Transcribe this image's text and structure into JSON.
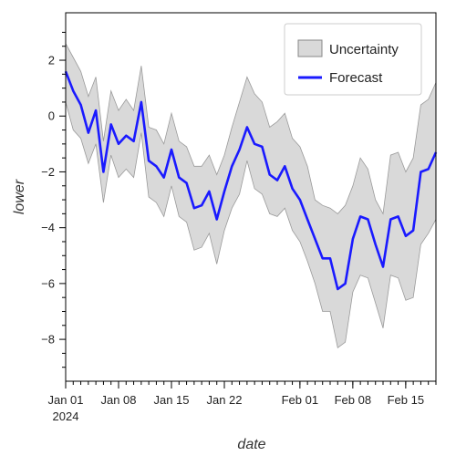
{
  "chart_data": {
    "type": "line",
    "title": "",
    "xlabel": "date",
    "ylabel": "lower",
    "x_start": "2024-01-01",
    "x_end": "2024-02-19",
    "xlim": [
      "2024-01-01",
      "2024-02-19"
    ],
    "ylim": [
      -9.5,
      3.7
    ],
    "y_ticks": [
      2,
      0,
      -2,
      -4,
      -6,
      -8
    ],
    "x_ticks": [
      {
        "date": "2024-01-01",
        "label": "Jan 01",
        "sublabel": "2024"
      },
      {
        "date": "2024-01-08",
        "label": "Jan 08",
        "sublabel": ""
      },
      {
        "date": "2024-01-15",
        "label": "Jan 15",
        "sublabel": ""
      },
      {
        "date": "2024-01-22",
        "label": "Jan 22",
        "sublabel": ""
      },
      {
        "date": "2024-02-01",
        "label": "Feb 01",
        "sublabel": ""
      },
      {
        "date": "2024-02-08",
        "label": "Feb 08",
        "sublabel": ""
      },
      {
        "date": "2024-02-15",
        "label": "Feb 15",
        "sublabel": ""
      }
    ],
    "grid": false,
    "legend_position": "top-right",
    "series": [
      {
        "name": "Forecast",
        "type": "line",
        "color": "#1a1aff",
        "x": [
          "2024-01-01",
          "2024-01-02",
          "2024-01-03",
          "2024-01-04",
          "2024-01-05",
          "2024-01-06",
          "2024-01-07",
          "2024-01-08",
          "2024-01-09",
          "2024-01-10",
          "2024-01-11",
          "2024-01-12",
          "2024-01-13",
          "2024-01-14",
          "2024-01-15",
          "2024-01-16",
          "2024-01-17",
          "2024-01-18",
          "2024-01-19",
          "2024-01-20",
          "2024-01-21",
          "2024-01-22",
          "2024-01-23",
          "2024-01-24",
          "2024-01-25",
          "2024-01-26",
          "2024-01-27",
          "2024-01-28",
          "2024-01-29",
          "2024-01-30",
          "2024-01-31",
          "2024-02-01",
          "2024-02-02",
          "2024-02-03",
          "2024-02-04",
          "2024-02-05",
          "2024-02-06",
          "2024-02-07",
          "2024-02-08",
          "2024-02-09",
          "2024-02-10",
          "2024-02-11",
          "2024-02-12",
          "2024-02-13",
          "2024-02-14",
          "2024-02-15",
          "2024-02-16",
          "2024-02-17",
          "2024-02-18",
          "2024-02-19"
        ],
        "y": [
          1.6,
          0.9,
          0.4,
          -0.6,
          0.2,
          -2.0,
          -0.3,
          -1.0,
          -0.7,
          -0.9,
          0.5,
          -1.6,
          -1.8,
          -2.2,
          -1.2,
          -2.2,
          -2.4,
          -3.3,
          -3.2,
          -2.7,
          -3.7,
          -2.7,
          -1.8,
          -1.2,
          -0.4,
          -1.0,
          -1.1,
          -2.1,
          -2.3,
          -1.8,
          -2.6,
          -3.0,
          -3.7,
          -4.4,
          -5.1,
          -5.1,
          -6.2,
          -6.0,
          -4.4,
          -3.6,
          -3.7,
          -4.6,
          -5.4,
          -3.7,
          -3.6,
          -4.3,
          -4.1,
          -2.0,
          -1.9,
          -1.3
        ]
      },
      {
        "name": "Uncertainty",
        "type": "band",
        "color": "#d9d9d9",
        "x": [
          "2024-01-01",
          "2024-01-02",
          "2024-01-03",
          "2024-01-04",
          "2024-01-05",
          "2024-01-06",
          "2024-01-07",
          "2024-01-08",
          "2024-01-09",
          "2024-01-10",
          "2024-01-11",
          "2024-01-12",
          "2024-01-13",
          "2024-01-14",
          "2024-01-15",
          "2024-01-16",
          "2024-01-17",
          "2024-01-18",
          "2024-01-19",
          "2024-01-20",
          "2024-01-21",
          "2024-01-22",
          "2024-01-23",
          "2024-01-24",
          "2024-01-25",
          "2024-01-26",
          "2024-01-27",
          "2024-01-28",
          "2024-01-29",
          "2024-01-30",
          "2024-01-31",
          "2024-02-01",
          "2024-02-02",
          "2024-02-03",
          "2024-02-04",
          "2024-02-05",
          "2024-02-06",
          "2024-02-07",
          "2024-02-08",
          "2024-02-09",
          "2024-02-10",
          "2024-02-11",
          "2024-02-12",
          "2024-02-13",
          "2024-02-14",
          "2024-02-15",
          "2024-02-16",
          "2024-02-17",
          "2024-02-18",
          "2024-02-19"
        ],
        "upper": [
          2.6,
          2.1,
          1.6,
          0.7,
          1.4,
          -0.9,
          0.9,
          0.2,
          0.6,
          0.2,
          1.8,
          -0.4,
          -0.5,
          -1.0,
          0.1,
          -0.9,
          -1.1,
          -1.8,
          -1.8,
          -1.4,
          -2.1,
          -1.4,
          -0.4,
          0.5,
          1.4,
          0.8,
          0.5,
          -0.4,
          -0.2,
          0.1,
          -0.8,
          -1.1,
          -1.8,
          -3.0,
          -3.2,
          -3.3,
          -3.5,
          -3.2,
          -2.5,
          -1.5,
          -1.9,
          -3.0,
          -3.5,
          -1.4,
          -1.3,
          -2.0,
          -1.5,
          0.4,
          0.6,
          1.2
        ],
        "lower": [
          0.5,
          -0.5,
          -0.8,
          -1.7,
          -1.0,
          -3.1,
          -1.4,
          -2.2,
          -1.9,
          -2.2,
          -0.6,
          -2.9,
          -3.1,
          -3.6,
          -2.5,
          -3.6,
          -3.8,
          -4.8,
          -4.7,
          -4.2,
          -5.3,
          -4.1,
          -3.3,
          -2.8,
          -1.6,
          -2.6,
          -2.8,
          -3.5,
          -3.6,
          -3.3,
          -4.1,
          -4.5,
          -5.2,
          -6.0,
          -7.0,
          -7.0,
          -8.3,
          -8.1,
          -6.3,
          -5.7,
          -5.8,
          -6.7,
          -7.6,
          -5.7,
          -5.8,
          -6.6,
          -6.5,
          -4.6,
          -4.2,
          -3.7
        ]
      }
    ]
  }
}
